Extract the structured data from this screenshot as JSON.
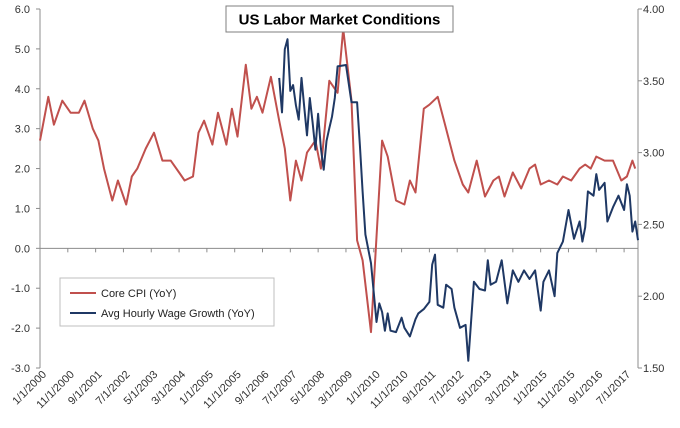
{
  "chart_data": {
    "type": "line",
    "title": "US Labor Market Conditions",
    "xlabel": "",
    "ylabel": "",
    "x_tick_labels": [
      "1/1/2000",
      "11/1/2000",
      "9/1/2001",
      "7/1/2002",
      "5/1/2003",
      "3/1/2004",
      "1/1/2005",
      "11/1/2005",
      "9/1/2006",
      "7/1/2007",
      "5/1/2008",
      "3/1/2009",
      "1/1/2010",
      "11/1/2010",
      "9/1/2011",
      "7/1/2012",
      "5/1/2013",
      "3/1/2014",
      "1/1/2015",
      "11/1/2015",
      "9/1/2016",
      "7/1/2017"
    ],
    "x_range": [
      "2000-01",
      "2017-12"
    ],
    "y_left": {
      "ylim": [
        -3.0,
        6.0
      ],
      "ticks": [
        "-3.0",
        "-2.0",
        "-1.0",
        "0.0",
        "1.0",
        "2.0",
        "3.0",
        "4.0",
        "5.0",
        "6.0"
      ]
    },
    "y_right": {
      "ylim": [
        1.5,
        4.0
      ],
      "ticks": [
        "1.50",
        "2.00",
        "2.50",
        "3.00",
        "3.50",
        "4.00"
      ]
    },
    "grid": false,
    "legend_position": "bottom-left",
    "series": [
      {
        "name": "Core CPI (YoY)",
        "axis": "left",
        "color": "#c0504d",
        "points": [
          [
            "2000-01",
            2.7
          ],
          [
            "2000-04",
            3.8
          ],
          [
            "2000-06",
            3.1
          ],
          [
            "2000-09",
            3.7
          ],
          [
            "2000-12",
            3.4
          ],
          [
            "2001-03",
            3.4
          ],
          [
            "2001-05",
            3.7
          ],
          [
            "2001-08",
            3.0
          ],
          [
            "2001-10",
            2.7
          ],
          [
            "2001-12",
            2.0
          ],
          [
            "2002-03",
            1.2
          ],
          [
            "2002-05",
            1.7
          ],
          [
            "2002-08",
            1.1
          ],
          [
            "2002-10",
            1.8
          ],
          [
            "2002-12",
            2.0
          ],
          [
            "2003-03",
            2.5
          ],
          [
            "2003-06",
            2.9
          ],
          [
            "2003-09",
            2.2
          ],
          [
            "2003-12",
            2.2
          ],
          [
            "2004-03",
            1.9
          ],
          [
            "2004-05",
            1.7
          ],
          [
            "2004-08",
            1.8
          ],
          [
            "2004-10",
            2.9
          ],
          [
            "2004-12",
            3.2
          ],
          [
            "2005-03",
            2.6
          ],
          [
            "2005-05",
            3.4
          ],
          [
            "2005-08",
            2.6
          ],
          [
            "2005-10",
            3.5
          ],
          [
            "2005-12",
            2.8
          ],
          [
            "2006-03",
            4.6
          ],
          [
            "2006-05",
            3.5
          ],
          [
            "2006-07",
            3.8
          ],
          [
            "2006-09",
            3.4
          ],
          [
            "2006-12",
            4.3
          ],
          [
            "2007-03",
            3.2
          ],
          [
            "2007-05",
            2.5
          ],
          [
            "2007-07",
            1.2
          ],
          [
            "2007-09",
            2.2
          ],
          [
            "2007-11",
            1.7
          ],
          [
            "2008-01",
            2.4
          ],
          [
            "2008-04",
            2.7
          ],
          [
            "2008-06",
            2.0
          ],
          [
            "2008-09",
            4.2
          ],
          [
            "2008-12",
            3.9
          ],
          [
            "2009-02",
            5.5
          ],
          [
            "2009-05",
            3.7
          ],
          [
            "2009-07",
            0.2
          ],
          [
            "2009-09",
            -0.3
          ],
          [
            "2009-12",
            -2.1
          ],
          [
            "2010-03",
            1.5
          ],
          [
            "2010-04",
            2.7
          ],
          [
            "2010-06",
            2.3
          ],
          [
            "2010-09",
            1.2
          ],
          [
            "2010-12",
            1.1
          ],
          [
            "2011-02",
            1.7
          ],
          [
            "2011-04",
            1.4
          ],
          [
            "2011-07",
            3.5
          ],
          [
            "2011-09",
            3.6
          ],
          [
            "2011-12",
            3.8
          ],
          [
            "2012-03",
            3.0
          ],
          [
            "2012-06",
            2.2
          ],
          [
            "2012-09",
            1.6
          ],
          [
            "2012-11",
            1.4
          ],
          [
            "2013-02",
            2.2
          ],
          [
            "2013-05",
            1.3
          ],
          [
            "2013-08",
            1.7
          ],
          [
            "2013-10",
            1.8
          ],
          [
            "2013-12",
            1.3
          ],
          [
            "2014-03",
            1.9
          ],
          [
            "2014-06",
            1.5
          ],
          [
            "2014-09",
            2.0
          ],
          [
            "2014-11",
            2.1
          ],
          [
            "2015-01",
            1.6
          ],
          [
            "2015-04",
            1.7
          ],
          [
            "2015-07",
            1.6
          ],
          [
            "2015-09",
            1.8
          ],
          [
            "2015-12",
            1.7
          ],
          [
            "2016-03",
            2.0
          ],
          [
            "2016-05",
            2.1
          ],
          [
            "2016-07",
            2.0
          ],
          [
            "2016-09",
            2.3
          ],
          [
            "2016-12",
            2.2
          ],
          [
            "2017-03",
            2.2
          ],
          [
            "2017-06",
            1.7
          ],
          [
            "2017-08",
            1.8
          ],
          [
            "2017-10",
            2.2
          ],
          [
            "2017-11",
            2.0
          ]
        ]
      },
      {
        "name": "Avg Hourly Wage Growth (YoY)",
        "axis": "right",
        "color": "#1f3864",
        "points": [
          [
            "2007-03",
            3.52
          ],
          [
            "2007-04",
            3.28
          ],
          [
            "2007-05",
            3.72
          ],
          [
            "2007-06",
            3.79
          ],
          [
            "2007-07",
            3.43
          ],
          [
            "2007-08",
            3.47
          ],
          [
            "2007-09",
            3.33
          ],
          [
            "2007-10",
            3.23
          ],
          [
            "2007-11",
            3.52
          ],
          [
            "2007-12",
            3.32
          ],
          [
            "2008-01",
            3.12
          ],
          [
            "2008-02",
            3.38
          ],
          [
            "2008-03",
            3.21
          ],
          [
            "2008-04",
            3.02
          ],
          [
            "2008-05",
            3.27
          ],
          [
            "2008-06",
            3.03
          ],
          [
            "2008-07",
            2.88
          ],
          [
            "2008-08",
            3.08
          ],
          [
            "2008-09",
            3.17
          ],
          [
            "2008-10",
            3.25
          ],
          [
            "2008-11",
            3.38
          ],
          [
            "2008-12",
            3.6
          ],
          [
            "2009-03",
            3.61
          ],
          [
            "2009-05",
            3.35
          ],
          [
            "2009-07",
            3.35
          ],
          [
            "2009-08",
            3.05
          ],
          [
            "2009-09",
            2.73
          ],
          [
            "2009-10",
            2.43
          ],
          [
            "2009-12",
            2.23
          ],
          [
            "2010-02",
            1.82
          ],
          [
            "2010-03",
            1.95
          ],
          [
            "2010-04",
            1.89
          ],
          [
            "2010-05",
            1.76
          ],
          [
            "2010-06",
            1.88
          ],
          [
            "2010-07",
            1.76
          ],
          [
            "2010-09",
            1.75
          ],
          [
            "2010-11",
            1.85
          ],
          [
            "2010-12",
            1.78
          ],
          [
            "2011-02",
            1.72
          ],
          [
            "2011-04",
            1.84
          ],
          [
            "2011-05",
            1.88
          ],
          [
            "2011-07",
            1.91
          ],
          [
            "2011-09",
            1.96
          ],
          [
            "2011-10",
            2.22
          ],
          [
            "2011-11",
            2.29
          ],
          [
            "2011-12",
            1.94
          ],
          [
            "2012-02",
            1.92
          ],
          [
            "2012-03",
            2.08
          ],
          [
            "2012-05",
            2.05
          ],
          [
            "2012-06",
            1.92
          ],
          [
            "2012-08",
            1.78
          ],
          [
            "2012-10",
            1.8
          ],
          [
            "2012-11",
            1.55
          ],
          [
            "2013-01",
            2.1
          ],
          [
            "2013-03",
            2.05
          ],
          [
            "2013-05",
            2.04
          ],
          [
            "2013-06",
            2.25
          ],
          [
            "2013-07",
            2.08
          ],
          [
            "2013-09",
            2.1
          ],
          [
            "2013-11",
            2.25
          ],
          [
            "2014-01",
            1.95
          ],
          [
            "2014-03",
            2.18
          ],
          [
            "2014-05",
            2.1
          ],
          [
            "2014-07",
            2.18
          ],
          [
            "2014-09",
            2.12
          ],
          [
            "2014-11",
            2.18
          ],
          [
            "2015-01",
            1.9
          ],
          [
            "2015-02",
            2.1
          ],
          [
            "2015-04",
            2.18
          ],
          [
            "2015-06",
            2.0
          ],
          [
            "2015-07",
            2.3
          ],
          [
            "2015-09",
            2.38
          ],
          [
            "2015-11",
            2.6
          ],
          [
            "2016-01",
            2.4
          ],
          [
            "2016-03",
            2.52
          ],
          [
            "2016-04",
            2.38
          ],
          [
            "2016-05",
            2.48
          ],
          [
            "2016-06",
            2.73
          ],
          [
            "2016-08",
            2.7
          ],
          [
            "2016-09",
            2.85
          ],
          [
            "2016-10",
            2.74
          ],
          [
            "2016-12",
            2.79
          ],
          [
            "2017-01",
            2.52
          ],
          [
            "2017-03",
            2.62
          ],
          [
            "2017-05",
            2.7
          ],
          [
            "2017-07",
            2.6
          ],
          [
            "2017-08",
            2.78
          ],
          [
            "2017-09",
            2.7
          ],
          [
            "2017-10",
            2.45
          ],
          [
            "2017-11",
            2.52
          ],
          [
            "2017-12",
            2.39
          ]
        ]
      }
    ]
  }
}
